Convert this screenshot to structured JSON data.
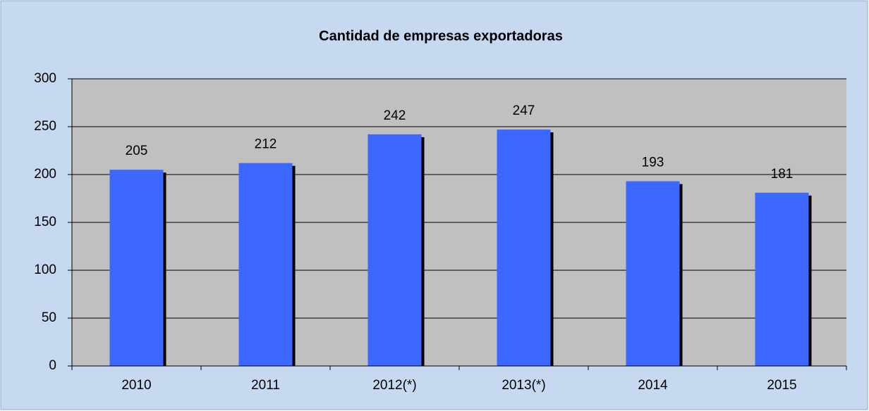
{
  "chart_data": {
    "type": "bar",
    "title": "Cantidad de empresas exportadoras",
    "categories": [
      "2010",
      "2011",
      "2012(*)",
      "2013(*)",
      "2014",
      "2015"
    ],
    "values": [
      205,
      212,
      242,
      247,
      193,
      181
    ],
    "color": "#3c68ff",
    "ylim": [
      0,
      300
    ],
    "yticks": [
      0,
      50,
      100,
      150,
      200,
      250,
      300
    ],
    "grid": true
  }
}
